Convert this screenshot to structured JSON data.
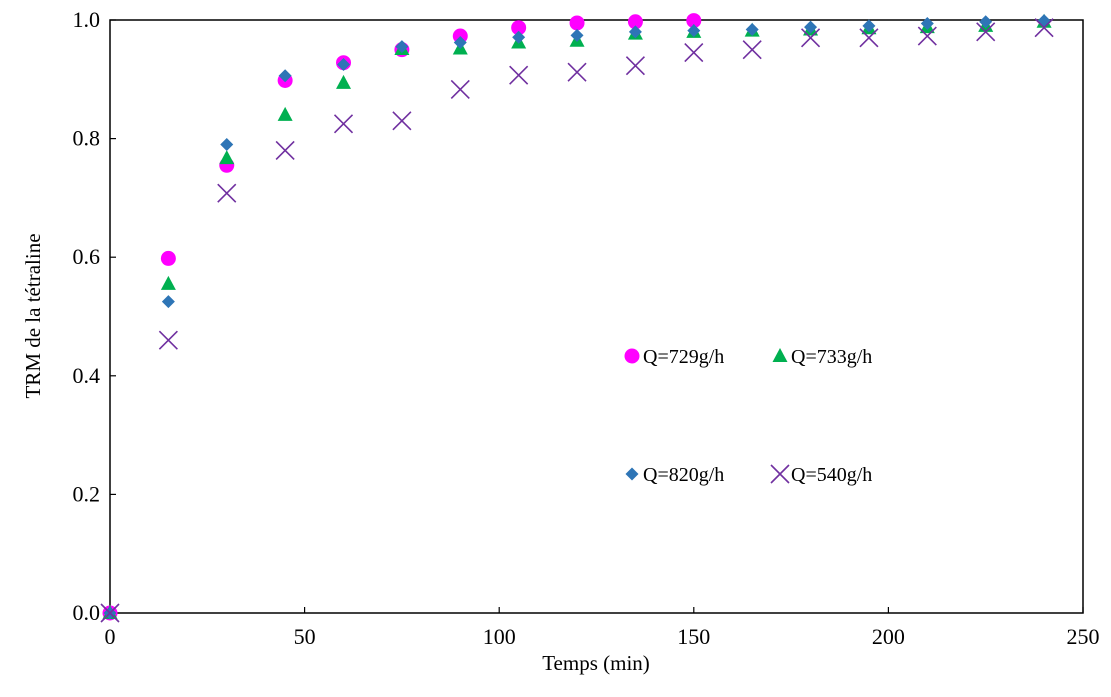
{
  "chart_data": {
    "type": "scatter",
    "title": "",
    "xlabel": "Temps (min)",
    "ylabel": "TRM de la tétraline",
    "xlim": [
      0,
      250
    ],
    "ylim": [
      0.0,
      1.0
    ],
    "x_ticks": [
      0,
      50,
      100,
      150,
      200,
      250
    ],
    "y_ticks": [
      0.0,
      0.2,
      0.4,
      0.6,
      0.8,
      1.0
    ],
    "x_tick_labels": [
      "0",
      "50",
      "100",
      "150",
      "200",
      "250"
    ],
    "y_tick_labels": [
      "0.0",
      "0.2",
      "0.4",
      "0.6",
      "0.8",
      "1.0"
    ],
    "grid": false,
    "legend_placement": "center-right",
    "series": [
      {
        "name": "Q=729g/h",
        "marker": "circle",
        "color": "#ff00ff",
        "x": [
          0,
          15,
          30,
          45,
          60,
          75,
          90,
          105,
          120,
          135,
          150
        ],
        "y": [
          0.0,
          0.598,
          0.755,
          0.898,
          0.928,
          0.95,
          0.973,
          0.987,
          0.995,
          0.997,
          0.999
        ]
      },
      {
        "name": "Q=733g/h",
        "marker": "triangle",
        "color": "#00b050",
        "x": [
          0,
          15,
          30,
          45,
          60,
          75,
          90,
          105,
          120,
          135,
          150,
          165,
          180,
          195,
          210,
          225,
          240
        ],
        "y": [
          0.0,
          0.555,
          0.767,
          0.84,
          0.894,
          0.951,
          0.952,
          0.962,
          0.965,
          0.977,
          0.98,
          0.982,
          0.984,
          0.986,
          0.988,
          0.99,
          0.997
        ]
      },
      {
        "name": "Q=820g/h",
        "marker": "diamond",
        "color": "#2e75b6",
        "x": [
          0,
          15,
          30,
          45,
          60,
          75,
          90,
          105,
          120,
          135,
          150,
          165,
          180,
          195,
          210,
          225,
          240
        ],
        "y": [
          0.0,
          0.525,
          0.79,
          0.906,
          0.925,
          0.955,
          0.962,
          0.971,
          0.974,
          0.98,
          0.982,
          0.984,
          0.988,
          0.99,
          0.994,
          0.997,
          0.999
        ]
      },
      {
        "name": "Q=540g/h",
        "marker": "x",
        "color": "#7030a0",
        "x": [
          0,
          15,
          30,
          45,
          60,
          75,
          90,
          105,
          120,
          135,
          150,
          165,
          180,
          195,
          210,
          225,
          240
        ],
        "y": [
          0.0,
          0.46,
          0.708,
          0.78,
          0.825,
          0.83,
          0.883,
          0.907,
          0.912,
          0.923,
          0.945,
          0.95,
          0.97,
          0.97,
          0.973,
          0.98,
          0.987
        ]
      }
    ]
  }
}
